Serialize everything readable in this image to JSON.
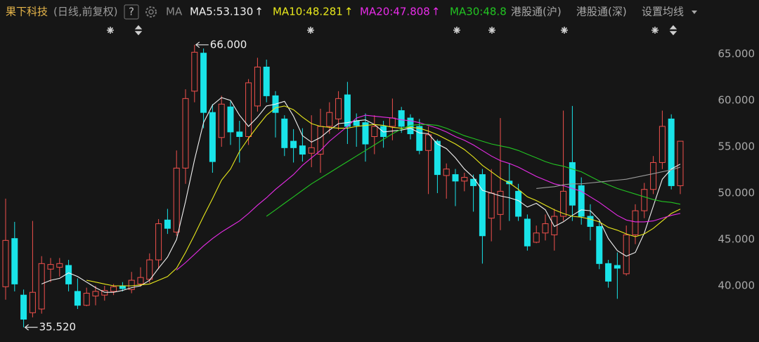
{
  "chart_data": {
    "type": "candlestick",
    "title": "果下科技",
    "subtitle": "(日线,前复权)",
    "help": "?",
    "ma_label": "MA",
    "buttons": [
      "港股通(沪)",
      "港股通(深)",
      "设置均线"
    ],
    "up_color": "#f0504c",
    "down_color": "#19e3e8",
    "open": [
      39.9,
      45.1,
      39.0,
      37.1,
      37.5,
      41.8,
      42.0,
      42.2,
      39.4,
      37.9,
      38.9,
      39.0,
      39.4,
      40.0,
      39.6,
      40.2,
      40.7,
      42.8,
      47.1,
      45.8,
      52.7,
      61.0,
      65.1,
      58.7,
      56.0,
      59.3,
      56.6,
      56.1,
      59.4,
      63.6,
      60.5,
      58.0,
      55.6,
      55.1,
      54.3,
      54.2,
      57.2,
      58.0,
      60.6,
      57.8,
      57.6,
      56.1,
      57.2,
      57.2,
      58.9,
      58.1,
      57.2,
      54.6,
      55.6,
      51.9,
      52.0,
      51.3,
      51.5,
      52.0,
      47.3,
      47.7,
      51.3,
      50.2,
      47.2,
      44.7,
      45.7,
      45.5,
      47.5,
      53.3,
      50.8,
      47.5,
      46.4,
      42.4,
      42.2,
      41.3,
      45.5,
      48.1,
      50.4,
      53.3,
      58.0,
      50.8
    ],
    "high": [
      49.4,
      46.9,
      39.6,
      47.0,
      43.2,
      43.0,
      43.0,
      42.8,
      40.8,
      39.8,
      40.0,
      40.0,
      40.2,
      40.4,
      41.5,
      42.0,
      43.5,
      47.2,
      48.3,
      54.6,
      61.2,
      66.0,
      65.6,
      59.6,
      60.5,
      59.9,
      57.8,
      62.3,
      64.6,
      64.4,
      61.0,
      58.4,
      56.9,
      57.0,
      58.4,
      59.1,
      59.8,
      61.0,
      62.0,
      58.6,
      58.6,
      58.4,
      57.8,
      60.2,
      59.3,
      58.5,
      58.0,
      57.2,
      55.8,
      53.2,
      52.6,
      52.2,
      52.0,
      52.6,
      52.6,
      58.1,
      53.2,
      51.0,
      47.7,
      46.5,
      47.7,
      48.3,
      58.9,
      59.4,
      51.7,
      48.8,
      47.0,
      42.8,
      43.6,
      46.5,
      48.8,
      51.1,
      54.0,
      58.9,
      58.5,
      55.6
    ],
    "low": [
      38.5,
      39.4,
      35.52,
      36.6,
      37.0,
      40.4,
      41.0,
      39.4,
      37.5,
      37.8,
      37.9,
      38.4,
      39.0,
      39.4,
      39.2,
      39.9,
      40.3,
      41.8,
      45.6,
      45.4,
      51.0,
      59.8,
      57.0,
      52.2,
      55.0,
      55.2,
      53.3,
      55.2,
      58.8,
      59.8,
      56.0,
      54.0,
      53.3,
      53.4,
      52.8,
      52.2,
      56.4,
      56.8,
      55.3,
      55.0,
      53.4,
      54.2,
      54.9,
      55.7,
      56.5,
      55.8,
      54.2,
      49.9,
      50.0,
      49.4,
      48.6,
      50.2,
      48.0,
      42.4,
      44.8,
      46.0,
      47.0,
      47.0,
      43.8,
      44.6,
      44.9,
      43.8,
      47.0,
      47.0,
      46.6,
      44.9,
      41.8,
      39.8,
      38.6,
      41.1,
      44.5,
      47.3,
      49.9,
      52.6,
      50.4,
      49.9
    ],
    "close": [
      44.9,
      40.2,
      36.4,
      39.3,
      42.4,
      42.3,
      42.4,
      40.2,
      37.9,
      39.2,
      39.4,
      39.5,
      39.9,
      39.7,
      40.6,
      40.9,
      42.8,
      46.7,
      46.2,
      52.7,
      60.2,
      65.2,
      58.7,
      53.4,
      59.6,
      56.6,
      56.1,
      61.9,
      63.6,
      60.5,
      58.7,
      54.9,
      54.9,
      54.2,
      54.9,
      57.2,
      58.7,
      60.2,
      57.2,
      57.3,
      55.3,
      57.2,
      56.1,
      58.1,
      57.2,
      56.4,
      54.6,
      56.3,
      52.0,
      52.6,
      51.3,
      51.7,
      50.8,
      45.4,
      50.0,
      50.2,
      51.0,
      47.5,
      44.3,
      45.7,
      46.7,
      47.5,
      50.2,
      48.7,
      47.5,
      46.4,
      42.4,
      40.5,
      41.9,
      45.5,
      48.1,
      50.4,
      53.3,
      57.2,
      50.8,
      55.6
    ],
    "max_label": "66.000",
    "min_label": "35.520",
    "series": [
      {
        "name": "MA5:53.130",
        "arrow": "↑",
        "color": "#f2f2f2",
        "values": [
          null,
          null,
          null,
          null,
          40.2,
          40.6,
          40.8,
          41.4,
          41.0,
          40.4,
          39.8,
          39.3,
          39.3,
          39.5,
          39.8,
          40.0,
          40.6,
          41.9,
          43.1,
          45.0,
          49.1,
          53.6,
          57.6,
          59.5,
          60.3,
          60.0,
          58.4,
          57.2,
          58.2,
          59.4,
          59.6,
          59.9,
          58.3,
          56.2,
          55.5,
          56.0,
          56.8,
          57.5,
          57.6,
          57.8,
          57.9,
          57.4,
          56.6,
          56.7,
          56.8,
          57.0,
          56.5,
          56.4,
          55.3,
          54.8,
          53.8,
          52.6,
          51.7,
          50.3,
          50.0,
          49.7,
          49.5,
          49.2,
          48.5,
          48.9,
          48.2,
          46.4,
          46.9,
          47.6,
          48.2,
          48.1,
          47.1,
          45.1,
          43.8,
          43.2,
          43.6,
          45.7,
          48.6,
          51.5,
          52.6,
          53.13
        ]
      },
      {
        "name": "MA10:48.281",
        "arrow": "↑",
        "color": "#e8e81c",
        "values": [
          null,
          null,
          null,
          null,
          null,
          null,
          null,
          null,
          null,
          40.6,
          40.4,
          40.2,
          40.0,
          40.0,
          40.0,
          40.1,
          40.2,
          40.6,
          41.0,
          41.9,
          43.6,
          45.5,
          47.5,
          49.4,
          51.4,
          52.6,
          54.5,
          55.9,
          57.2,
          58.4,
          59.2,
          59.4,
          59.0,
          58.2,
          57.5,
          57.2,
          57.1,
          57.0,
          57.0,
          57.2,
          57.3,
          57.4,
          57.3,
          57.1,
          57.0,
          57.1,
          57.0,
          56.7,
          56.3,
          55.8,
          55.3,
          54.7,
          53.9,
          53.0,
          52.3,
          51.6,
          51.1,
          50.4,
          49.6,
          49.2,
          48.7,
          48.2,
          47.8,
          47.5,
          47.4,
          47.2,
          46.9,
          46.3,
          46.0,
          45.6,
          45.3,
          45.6,
          46.2,
          47.0,
          47.8,
          48.281
        ]
      },
      {
        "name": "MA20:47.808",
        "arrow": "↑",
        "color": "#e82ce8",
        "values": [
          null,
          null,
          null,
          null,
          null,
          null,
          null,
          null,
          null,
          null,
          null,
          null,
          null,
          null,
          null,
          null,
          null,
          null,
          null,
          41.7,
          42.5,
          43.4,
          44.3,
          45.1,
          45.8,
          46.4,
          47.0,
          47.8,
          48.7,
          49.5,
          50.4,
          51.2,
          52.0,
          53.0,
          53.8,
          54.6,
          55.6,
          56.4,
          57.2,
          58.1,
          58.4,
          58.3,
          58.2,
          58.1,
          57.9,
          57.8,
          57.6,
          57.3,
          57.0,
          56.6,
          56.1,
          55.7,
          55.2,
          54.6,
          54.0,
          53.5,
          53.2,
          52.8,
          52.3,
          51.8,
          51.4,
          51.0,
          50.8,
          50.5,
          50.2,
          49.6,
          49.0,
          48.3,
          47.6,
          47.1,
          46.9,
          46.9,
          47.0,
          47.3,
          47.6,
          47.808
        ]
      },
      {
        "name": "MA30:48.8",
        "color": "#22c422",
        "values": [
          null,
          null,
          null,
          null,
          null,
          null,
          null,
          null,
          null,
          null,
          null,
          null,
          null,
          null,
          null,
          null,
          null,
          null,
          null,
          null,
          null,
          null,
          null,
          null,
          null,
          null,
          null,
          null,
          null,
          47.5,
          48.2,
          48.9,
          49.6,
          50.3,
          51.0,
          51.6,
          52.2,
          52.8,
          53.4,
          54.0,
          54.6,
          55.2,
          55.8,
          56.4,
          56.9,
          57.3,
          57.4,
          57.4,
          57.3,
          57.0,
          56.6,
          56.2,
          55.9,
          55.6,
          55.3,
          55.1,
          54.9,
          54.6,
          54.2,
          53.8,
          53.4,
          53.1,
          52.9,
          52.6,
          52.3,
          51.8,
          51.3,
          50.9,
          50.5,
          50.2,
          49.9,
          49.6,
          49.3,
          49.1,
          49.0,
          48.8
        ]
      },
      {
        "color": "#9a9a9a",
        "values": [
          null,
          null,
          null,
          null,
          null,
          null,
          null,
          null,
          null,
          null,
          null,
          null,
          null,
          null,
          null,
          null,
          null,
          null,
          null,
          null,
          null,
          null,
          null,
          null,
          null,
          null,
          null,
          null,
          null,
          null,
          null,
          null,
          null,
          null,
          null,
          null,
          null,
          null,
          null,
          null,
          null,
          null,
          null,
          null,
          null,
          null,
          null,
          null,
          null,
          null,
          null,
          null,
          null,
          null,
          null,
          null,
          null,
          null,
          null,
          50.5,
          50.6,
          50.7,
          50.9,
          51.0,
          51.0,
          51.1,
          51.2,
          51.3,
          51.4,
          51.5,
          51.7,
          51.9,
          52.1,
          52.3,
          52.5,
          52.8
        ]
      }
    ],
    "ylim": [
      33.94,
      68.56
    ],
    "yticks": [
      {
        "value": 65,
        "label": "65.000"
      },
      {
        "value": 60,
        "label": "60.000"
      },
      {
        "value": 55,
        "label": "55.000"
      },
      {
        "value": 50,
        "label": "50.000"
      },
      {
        "value": 45,
        "label": "45.000"
      },
      {
        "value": 40,
        "label": "40.000"
      }
    ],
    "grid": false
  }
}
